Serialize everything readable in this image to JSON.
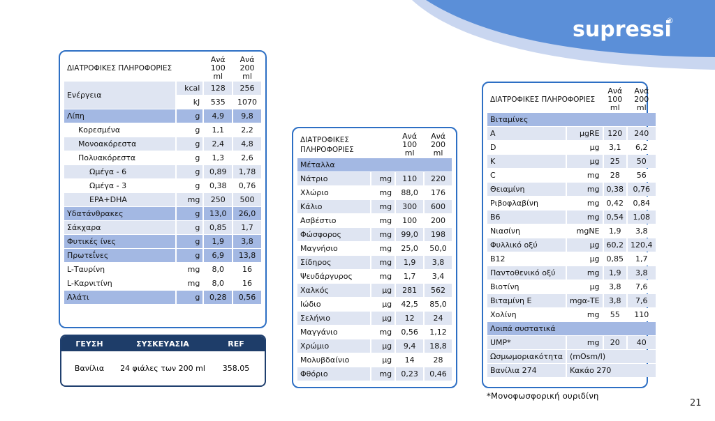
{
  "brand": {
    "name": "supressi",
    "mark": "®"
  },
  "page_number": "21",
  "footnote": "*Μονοφωσφορική ουριδίνη",
  "tables": [
    {
      "header": {
        "title": "ΔΙΑΤΡΟΦΙΚΕΣ ΠΛΗΡΟΦΟΡΙΕΣ",
        "col100": "Ανά 100 ml",
        "col200": "Ανά 200 ml"
      },
      "rows": [
        {
          "label": "Ενέργεια",
          "shade": "light",
          "sub": [
            {
              "unit": "kcal",
              "per100": "128",
              "per200": "256",
              "shade": "light"
            },
            {
              "unit": "kJ",
              "per100": "535",
              "per200": "1070",
              "shade": "white"
            }
          ]
        },
        {
          "label": "Λίπη",
          "unit": "g",
          "per100": "4,9",
          "per200": "9,8",
          "shade": "dark"
        },
        {
          "label": "Κορεσμένα",
          "unit": "g",
          "per100": "1,1",
          "per200": "2,2",
          "shade": "white",
          "indent": 1
        },
        {
          "label": "Μονοακόρεστα",
          "unit": "g",
          "per100": "2,4",
          "per200": "4,8",
          "shade": "light",
          "indent": 1
        },
        {
          "label": "Πολυακόρεστα",
          "unit": "g",
          "per100": "1,3",
          "per200": "2,6",
          "shade": "white",
          "indent": 1
        },
        {
          "label": "Ωμέγα - 6",
          "unit": "g",
          "per100": "0,89",
          "per200": "1,78",
          "shade": "light",
          "indent": 2
        },
        {
          "label": "Ωμέγα - 3",
          "unit": "g",
          "per100": "0,38",
          "per200": "0,76",
          "shade": "white",
          "indent": 2
        },
        {
          "label": "EPA+DHA",
          "unit": "mg",
          "per100": "250",
          "per200": "500",
          "shade": "light",
          "indent": 2
        },
        {
          "label": "Υδατάνθρακες",
          "unit": "g",
          "per100": "13,0",
          "per200": "26,0",
          "shade": "dark"
        },
        {
          "label": "Σάκχαρα",
          "unit": "g",
          "per100": "0,85",
          "per200": "1,7",
          "shade": "light"
        },
        {
          "label": "Φυτικές ίνες",
          "unit": "g",
          "per100": "1,9",
          "per200": "3,8",
          "shade": "dark"
        },
        {
          "label": "Πρωτεΐνες",
          "unit": "g",
          "per100": "6,9",
          "per200": "13,8",
          "shade": "dark"
        },
        {
          "label": "L-Ταυρίνη",
          "unit": "mg",
          "per100": "8,0",
          "per200": "16",
          "shade": "white"
        },
        {
          "label": "L-Καρνιτίνη",
          "unit": "mg",
          "per100": "8,0",
          "per200": "16",
          "shade": "white"
        },
        {
          "label": "Αλάτι",
          "unit": "g",
          "per100": "0,28",
          "per200": "0,56",
          "shade": "dark"
        }
      ]
    },
    {
      "header": {
        "title": "ΔΙΑΤΡΟΦΙΚΕΣ ΠΛΗΡΟΦΟΡΙΕΣ",
        "col100": "Ανά 100 ml",
        "col200": "Ανά 200 ml"
      },
      "rows": [
        {
          "section": "Μέταλλα"
        },
        {
          "label": "Νάτριο",
          "unit": "mg",
          "per100": "110",
          "per200": "220",
          "shade": "light"
        },
        {
          "label": "Χλώριο",
          "unit": "mg",
          "per100": "88,0",
          "per200": "176",
          "shade": "white"
        },
        {
          "label": "Κάλιο",
          "unit": "mg",
          "per100": "300",
          "per200": "600",
          "shade": "light"
        },
        {
          "label": "Ασβέστιο",
          "unit": "mg",
          "per100": "100",
          "per200": "200",
          "shade": "white"
        },
        {
          "label": "Φώσφορος",
          "unit": "mg",
          "per100": "99,0",
          "per200": "198",
          "shade": "light"
        },
        {
          "label": "Μαγνήσιο",
          "unit": "mg",
          "per100": "25,0",
          "per200": "50,0",
          "shade": "white"
        },
        {
          "label": "Σίδηρος",
          "unit": "mg",
          "per100": "1,9",
          "per200": "3,8",
          "shade": "light"
        },
        {
          "label": "Ψευδάργυρος",
          "unit": "mg",
          "per100": "1,7",
          "per200": "3,4",
          "shade": "white"
        },
        {
          "label": "Χαλκός",
          "unit": "μg",
          "per100": "281",
          "per200": "562",
          "shade": "light"
        },
        {
          "label": "Ιώδιο",
          "unit": "μg",
          "per100": "42,5",
          "per200": "85,0",
          "shade": "white"
        },
        {
          "label": "Σελήνιο",
          "unit": "μg",
          "per100": "12",
          "per200": "24",
          "shade": "light"
        },
        {
          "label": "Μαγγάνιο",
          "unit": "mg",
          "per100": "0,56",
          "per200": "1,12",
          "shade": "white"
        },
        {
          "label": "Χρώμιο",
          "unit": "μg",
          "per100": "9,4",
          "per200": "18,8",
          "shade": "light"
        },
        {
          "label": "Μολυβδαίνιο",
          "unit": "μg",
          "per100": "14",
          "per200": "28",
          "shade": "white"
        },
        {
          "label": "Φθόριο",
          "unit": "mg",
          "per100": "0,23",
          "per200": "0,46",
          "shade": "light"
        }
      ]
    },
    {
      "header": {
        "title": "ΔΙΑΤΡΟΦΙΚΕΣ ΠΛΗΡΟΦΟΡΙΕΣ",
        "col100": "Ανά 100 ml",
        "col200": "Ανά 200 ml"
      },
      "rows": [
        {
          "section": "Βιταμίνες"
        },
        {
          "label": "A",
          "unit": "μgRE",
          "per100": "120",
          "per200": "240",
          "shade": "light"
        },
        {
          "label": "D",
          "unit": "μg",
          "per100": "3,1",
          "per200": "6,2",
          "shade": "white"
        },
        {
          "label": "K",
          "unit": "μg",
          "per100": "25",
          "per200": "50",
          "shade": "light"
        },
        {
          "label": "C",
          "unit": "mg",
          "per100": "28",
          "per200": "56",
          "shade": "white"
        },
        {
          "label": "Θειαμίνη",
          "unit": "mg",
          "per100": "0,38",
          "per200": "0,76",
          "shade": "light"
        },
        {
          "label": "Ριβοφλαβίνη",
          "unit": "mg",
          "per100": "0,42",
          "per200": "0,84",
          "shade": "white"
        },
        {
          "label": "B6",
          "unit": "mg",
          "per100": "0,54",
          "per200": "1,08",
          "shade": "light"
        },
        {
          "label": "Νιασίνη",
          "unit": "mgNE",
          "per100": "1,9",
          "per200": "3,8",
          "shade": "white"
        },
        {
          "label": "Φυλλικό οξύ",
          "unit": "μg",
          "per100": "60,2",
          "per200": "120,4",
          "shade": "light"
        },
        {
          "label": "B12",
          "unit": "μg",
          "per100": "0,85",
          "per200": "1,7",
          "shade": "white"
        },
        {
          "label": "Παντοθενικό οξύ",
          "unit": "mg",
          "per100": "1,9",
          "per200": "3,8",
          "shade": "light"
        },
        {
          "label": "Βιοτίνη",
          "unit": "μg",
          "per100": "3,8",
          "per200": "7,6",
          "shade": "white"
        },
        {
          "label": "Βιταμίνη E",
          "unit": "mgα-TE",
          "per100": "3,8",
          "per200": "7,6",
          "shade": "light"
        },
        {
          "label": "Χολίνη",
          "unit": "mg",
          "per100": "55",
          "per200": "110",
          "shade": "white"
        },
        {
          "section": "Λοιπά συστατικά"
        },
        {
          "label": "UMP*",
          "unit": "mg",
          "per100": "20",
          "per200": "40",
          "shade": "light"
        },
        {
          "label": "Ωσμωμοριακότητα",
          "unit": "(mOsm/l)",
          "shade": "light"
        },
        {
          "label": "Βανίλια 274",
          "unit": "Κακάο 270",
          "shade": "light"
        }
      ]
    }
  ],
  "product": {
    "columns": [
      "ΓΕΥΣΗ",
      "ΣΥΣΚΕΥΑΣΙΑ",
      "REF"
    ],
    "rows": [
      [
        "Βανίλια",
        "24 φιάλες των 200 ml",
        "358.05"
      ]
    ]
  }
}
